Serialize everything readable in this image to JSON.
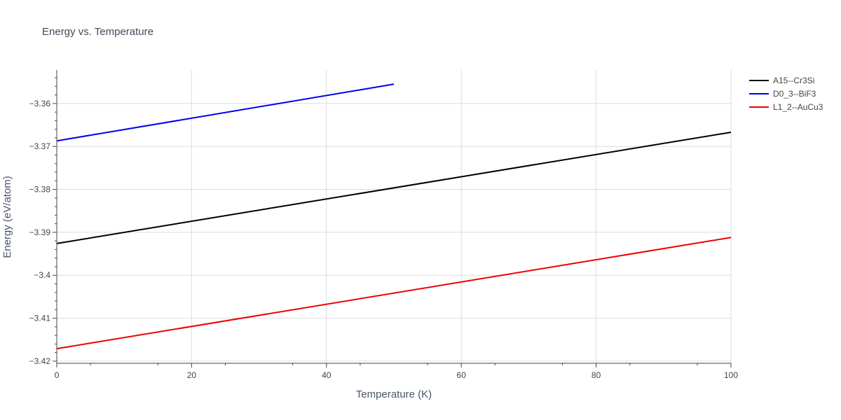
{
  "chart_data": {
    "type": "line",
    "title": "Energy vs. Temperature",
    "xlabel": "Temperature (K)",
    "ylabel": "Energy (eV/atom)",
    "xlim": [
      0,
      100
    ],
    "ylim": [
      -3.4205,
      -3.3522
    ],
    "xticks": [
      0,
      20,
      40,
      60,
      80,
      100
    ],
    "xtick_labels": [
      "0",
      "20",
      "40",
      "60",
      "80",
      "100"
    ],
    "yticks": [
      -3.42,
      -3.41,
      -3.4,
      -3.39,
      -3.38,
      -3.37,
      -3.36
    ],
    "ytick_labels": [
      "−3.42",
      "−3.41",
      "−3.4",
      "−3.39",
      "−3.38",
      "−3.37",
      "−3.36"
    ],
    "grid": true,
    "legend_position": "top-right-outside",
    "series": [
      {
        "name": "A15--Cr3Si",
        "color": "#000000",
        "x": [
          0,
          100
        ],
        "y": [
          -3.3926,
          -3.3667
        ]
      },
      {
        "name": "D0_3--BiF3",
        "color": "#0000ee",
        "x": [
          0,
          50
        ],
        "y": [
          -3.3687,
          -3.3555
        ]
      },
      {
        "name": "L1_2--AuCu3",
        "color": "#ee0000",
        "x": [
          0,
          100
        ],
        "y": [
          -3.4171,
          -3.3912
        ]
      }
    ]
  }
}
